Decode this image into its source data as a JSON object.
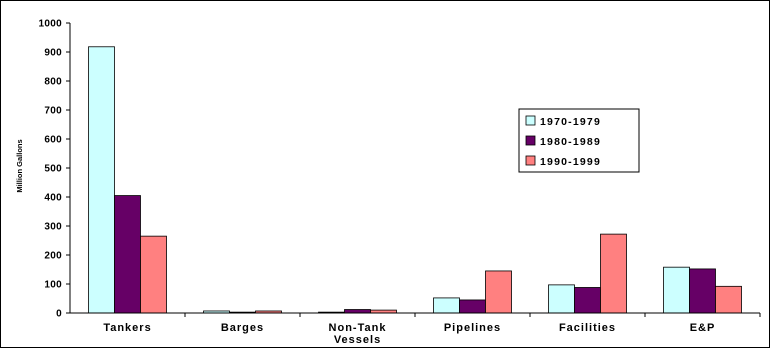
{
  "chart_data": {
    "type": "bar",
    "title": "",
    "xlabel": "",
    "ylabel": "Million Gallons",
    "ylim": [
      0,
      1000
    ],
    "yticks": [
      0,
      100,
      200,
      300,
      400,
      500,
      600,
      700,
      800,
      900,
      1000
    ],
    "grid": false,
    "legend_position": "right",
    "categories": [
      "Tankers",
      "Barges",
      "Non-Tank Vessels",
      "Pipelines",
      "Facilities",
      "E&P"
    ],
    "category_lines": [
      [
        "Tankers"
      ],
      [
        "Barges"
      ],
      [
        "Non-Tank",
        "Vessels"
      ],
      [
        "Pipelines"
      ],
      [
        "Facilities"
      ],
      [
        "E&P"
      ]
    ],
    "series": [
      {
        "name": "1970-1979",
        "color": "#ccffff",
        "values": [
          918,
          7,
          3,
          52,
          97,
          158
        ]
      },
      {
        "name": "1980-1989",
        "color": "#660066",
        "values": [
          405,
          3,
          12,
          45,
          88,
          152
        ]
      },
      {
        "name": "1990-1999",
        "color": "#ff8080",
        "values": [
          265,
          7,
          10,
          145,
          272,
          92
        ]
      }
    ]
  }
}
